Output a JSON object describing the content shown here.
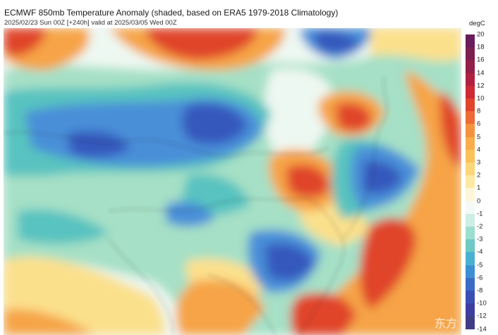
{
  "title": "ECMWF 850mb Temperature Anomaly (shaded, based on ERA5 1979-2018 Climatology)",
  "subtitle": "2025/02/23 Sun 00Z [+240h] valid at 2025/03/05 Wed 00Z",
  "legend": {
    "unit": "degC",
    "levels": [
      "20",
      "18",
      "16",
      "14",
      "12",
      "10",
      "8",
      "6",
      "5",
      "4",
      "3",
      "2",
      "1",
      "0",
      "-1",
      "-2",
      "-3",
      "-4",
      "-5",
      "-6",
      "-8",
      "-10",
      "-12",
      "-14"
    ],
    "colors": [
      "#6a1b5a",
      "#7a1f50",
      "#93204a",
      "#b02040",
      "#cc2a35",
      "#e0452c",
      "#ee6a35",
      "#f5923f",
      "#f8ad4a",
      "#fbc25a",
      "#fcd77a",
      "#fde9a2",
      "#fdf6d9",
      "#f3faf7",
      "#cdeee4",
      "#9ddfcf",
      "#6cc9c4",
      "#4ab0d2",
      "#3d8fd3",
      "#3a6cc6",
      "#3a4fb4",
      "#3c3fa0",
      "#3f3d85"
    ]
  },
  "colors": {
    "deep_blue": "#3558bd",
    "mid_blue": "#4a8fd8",
    "teal": "#58c3c0",
    "light_green": "#a6e0c6",
    "pale": "#eef8f2",
    "yellow": "#fbe08c",
    "orange": "#f6a446",
    "red": "#e0452c",
    "purple": "#6a1b5a"
  },
  "watermark": "东方"
}
